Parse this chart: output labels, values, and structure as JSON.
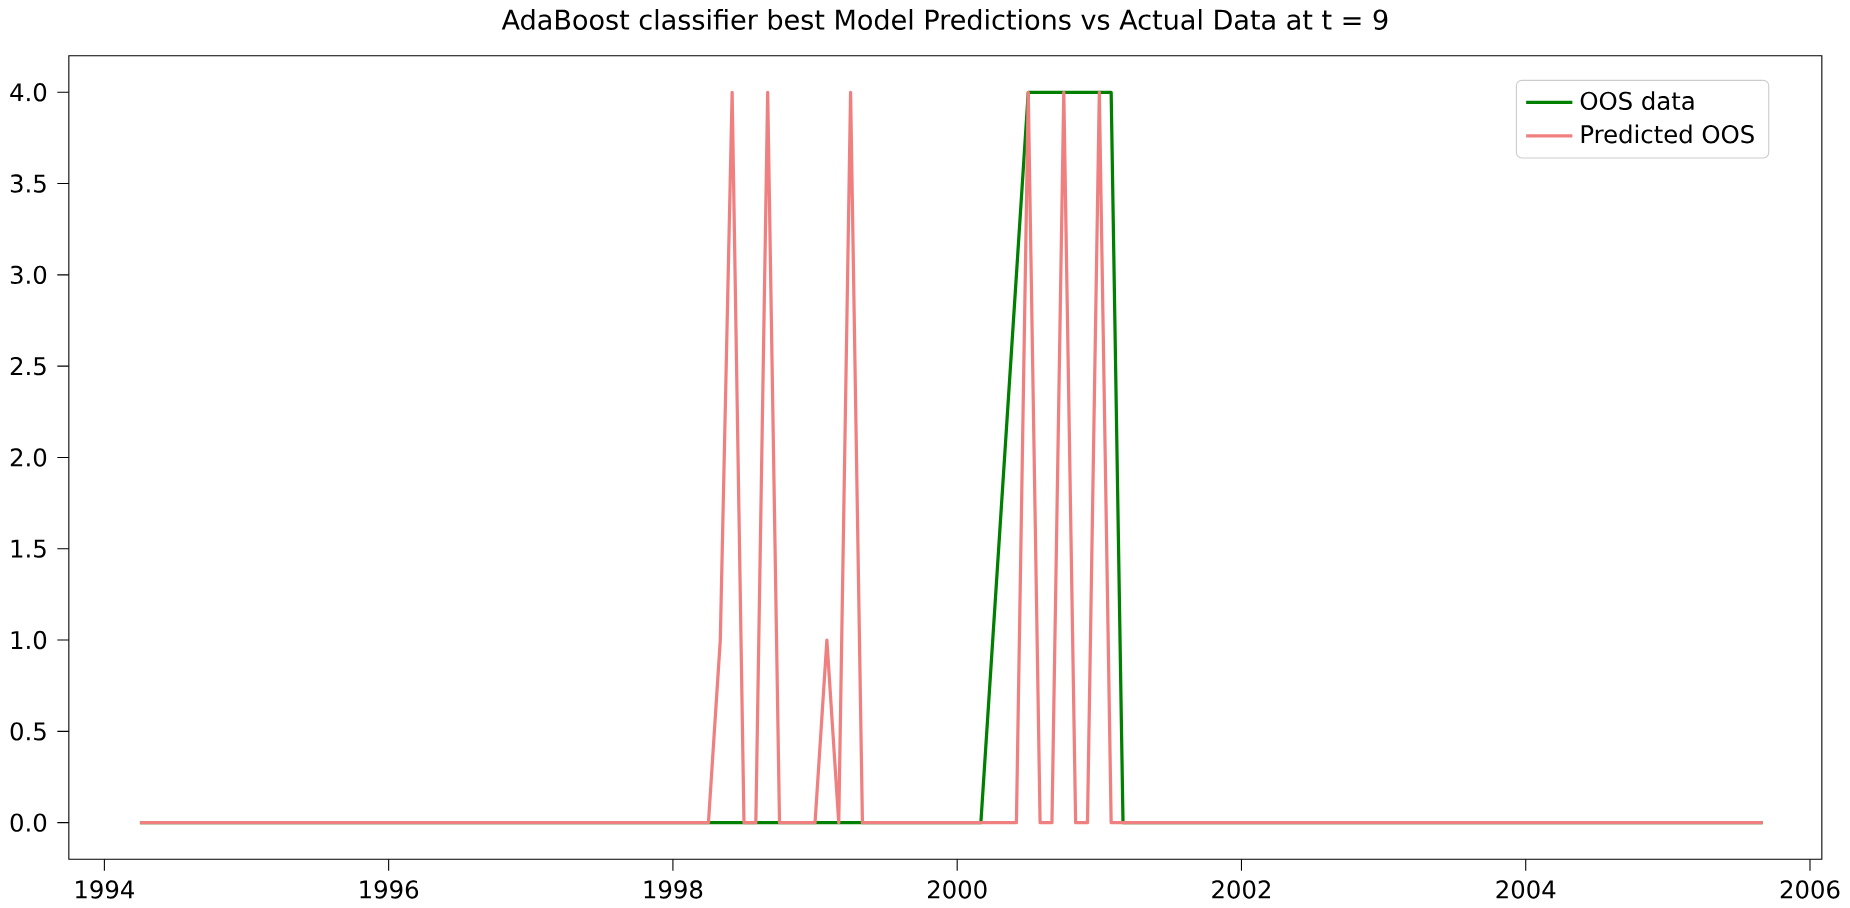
{
  "chart_data": {
    "type": "line",
    "title": "AdaBoost classifier best Model Predictions vs Actual Data at t = 9",
    "xlim": [
      "1993-10",
      "2006-02"
    ],
    "xticks": [
      {
        "value": "1994",
        "label": "1994"
      },
      {
        "value": "1996",
        "label": "1996"
      },
      {
        "value": "1998",
        "label": "1998"
      },
      {
        "value": "2000",
        "label": "2000"
      },
      {
        "value": "2002",
        "label": "2002"
      },
      {
        "value": "2004",
        "label": "2004"
      },
      {
        "value": "2006",
        "label": "2006"
      }
    ],
    "ylim": [
      -0.2,
      4.2
    ],
    "yticks": [
      {
        "value": 0,
        "label": "0.0"
      },
      {
        "value": 0.5,
        "label": "0.5"
      },
      {
        "value": 1,
        "label": "1.0"
      },
      {
        "value": 1.5,
        "label": "1.5"
      },
      {
        "value": 2,
        "label": "2.0"
      },
      {
        "value": 2.5,
        "label": "2.5"
      },
      {
        "value": 3,
        "label": "3.0"
      },
      {
        "value": 3.5,
        "label": "3.5"
      },
      {
        "value": 4,
        "label": "4.0"
      }
    ],
    "legend": "top right",
    "series": [
      {
        "name": "OOS data",
        "color": "#008000",
        "x": [
          "1994-04",
          "2000-03",
          "2000-07",
          "2001-02",
          "2001-03",
          "2005-09"
        ],
        "values": [
          0,
          0,
          4,
          4,
          0,
          0
        ]
      },
      {
        "name": "Predicted OOS",
        "color": "#f08080",
        "x": [
          "1994-04",
          "1998-04",
          "1998-05",
          "1998-06",
          "1998-07",
          "1998-08",
          "1998-09",
          "1998-10",
          "1999-01",
          "1999-02",
          "1999-03",
          "1999-04",
          "1999-05",
          "2000-06",
          "2000-07",
          "2000-08",
          "2000-09",
          "2000-10",
          "2000-11",
          "2000-12",
          "2001-01",
          "2001-02",
          "2005-09"
        ],
        "values": [
          0,
          0,
          1,
          4,
          0,
          0,
          4,
          0,
          0,
          1,
          0,
          4,
          0,
          0,
          4,
          0,
          0,
          4,
          0,
          0,
          4,
          0,
          0
        ]
      }
    ]
  }
}
